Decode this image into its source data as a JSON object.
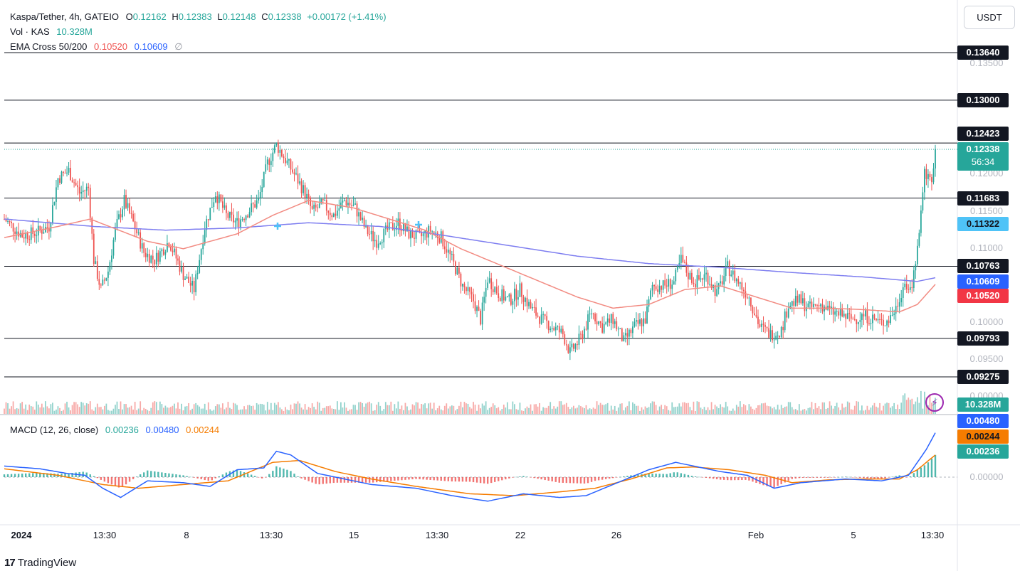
{
  "symbol": {
    "title": "Kaspa/Tether, 4h, GATEIO",
    "open_label": "O",
    "open": "0.12162",
    "high_label": "H",
    "high": "0.12383",
    "low_label": "L",
    "low": "0.12148",
    "close_label": "C",
    "close": "0.12338",
    "change": "+0.00172 (+1.41%)"
  },
  "volume_legend": {
    "label": "Vol · KAS",
    "value": "10.328M"
  },
  "ema_legend": {
    "label": "EMA Cross 50/200",
    "fast": "0.10520",
    "slow": "0.10609",
    "symbol": "∅"
  },
  "macd_legend": {
    "label": "MACD (12, 26, close)",
    "hist": "0.00236",
    "macd": "0.00480",
    "signal": "0.00244"
  },
  "currency_button": "USDT",
  "countdown": "56:34",
  "brand": "TradingView",
  "colors": {
    "up": "#26a69a",
    "down": "#ef5350",
    "ema_fast": "#f28b82",
    "ema_slow": "#7e7ef0",
    "macd": "#2962ff",
    "signal": "#f57c00",
    "accent_blue": "#2962ff",
    "purple": "#9c27b0"
  },
  "chart_data": {
    "type": "candlestick",
    "price_range": [
      0.0915,
      0.1385
    ],
    "horizontal_levels": [
      0.1364,
      0.13,
      0.12423,
      0.11683,
      0.10763,
      0.09793,
      0.09275
    ],
    "price_ticks": [
      "0.13500",
      "0.12000",
      "0.11500",
      "0.11000",
      "0.10000",
      "0.09500",
      "0.00000"
    ],
    "price_tags": [
      {
        "value": "0.13640",
        "kind": "level"
      },
      {
        "value": "0.13000",
        "kind": "level"
      },
      {
        "value": "0.12423",
        "kind": "level"
      },
      {
        "value": "0.12338",
        "kind": "last"
      },
      {
        "value": "0.11683",
        "kind": "level"
      },
      {
        "value": "0.11322",
        "kind": "cross"
      },
      {
        "value": "0.10763",
        "kind": "level"
      },
      {
        "value": "0.10609",
        "kind": "ema_slow"
      },
      {
        "value": "0.10520",
        "kind": "ema_fast"
      },
      {
        "value": "0.09793",
        "kind": "level"
      },
      {
        "value": "0.09275",
        "kind": "level"
      },
      {
        "value": "10.328M",
        "kind": "volume"
      }
    ],
    "macd_tags": [
      {
        "value": "0.00480",
        "kind": "macd"
      },
      {
        "value": "0.00244",
        "kind": "signal"
      },
      {
        "value": "0.00236",
        "kind": "hist"
      }
    ],
    "macd_zero_label": "0.00000",
    "x_labels": [
      "2024",
      "13:30",
      "8",
      "13:30",
      "15",
      "13:30",
      "22",
      "26",
      "Feb",
      "5",
      "13:30"
    ],
    "close_anchors": [
      [
        0,
        0.114
      ],
      [
        10,
        0.1118
      ],
      [
        18,
        0.1122
      ],
      [
        25,
        0.113
      ],
      [
        30,
        0.1195
      ],
      [
        36,
        0.1205
      ],
      [
        42,
        0.1175
      ],
      [
        47,
        0.1182
      ],
      [
        50,
        0.1085
      ],
      [
        54,
        0.1045
      ],
      [
        58,
        0.107
      ],
      [
        62,
        0.1125
      ],
      [
        67,
        0.1165
      ],
      [
        72,
        0.1135
      ],
      [
        78,
        0.1095
      ],
      [
        84,
        0.1085
      ],
      [
        92,
        0.111
      ],
      [
        100,
        0.1065
      ],
      [
        106,
        0.1045
      ],
      [
        112,
        0.113
      ],
      [
        118,
        0.1175
      ],
      [
        124,
        0.1145
      ],
      [
        130,
        0.1135
      ],
      [
        136,
        0.115
      ],
      [
        142,
        0.1165
      ],
      [
        147,
        0.1215
      ],
      [
        152,
        0.124
      ],
      [
        157,
        0.122
      ],
      [
        162,
        0.12
      ],
      [
        168,
        0.1175
      ],
      [
        172,
        0.115
      ],
      [
        178,
        0.116
      ],
      [
        184,
        0.1145
      ],
      [
        190,
        0.1165
      ],
      [
        196,
        0.1155
      ],
      [
        202,
        0.1125
      ],
      [
        208,
        0.111
      ],
      [
        214,
        0.1125
      ],
      [
        220,
        0.1135
      ],
      [
        226,
        0.112
      ],
      [
        232,
        0.1115
      ],
      [
        238,
        0.1125
      ],
      [
        244,
        0.1115
      ],
      [
        250,
        0.1085
      ],
      [
        256,
        0.105
      ],
      [
        262,
        0.103
      ],
      [
        266,
        0.1005
      ],
      [
        270,
        0.106
      ],
      [
        276,
        0.104
      ],
      [
        282,
        0.103
      ],
      [
        288,
        0.1045
      ],
      [
        294,
        0.102
      ],
      [
        300,
        0.1005
      ],
      [
        306,
        0.0995
      ],
      [
        312,
        0.0985
      ],
      [
        316,
        0.096
      ],
      [
        322,
        0.098
      ],
      [
        328,
        0.1015
      ],
      [
        334,
        0.0995
      ],
      [
        340,
        0.1005
      ],
      [
        346,
        0.0975
      ],
      [
        352,
        0.0995
      ],
      [
        358,
        0.1005
      ],
      [
        362,
        0.105
      ],
      [
        368,
        0.105
      ],
      [
        374,
        0.1055
      ],
      [
        378,
        0.1085
      ],
      [
        382,
        0.1065
      ],
      [
        386,
        0.1055
      ],
      [
        392,
        0.1065
      ],
      [
        398,
        0.104
      ],
      [
        404,
        0.1075
      ],
      [
        410,
        0.1055
      ],
      [
        416,
        0.1035
      ],
      [
        422,
        0.0995
      ],
      [
        428,
        0.0985
      ],
      [
        434,
        0.099
      ],
      [
        438,
        0.1025
      ],
      [
        444,
        0.103
      ],
      [
        450,
        0.102
      ],
      [
        456,
        0.1025
      ],
      [
        462,
        0.1015
      ],
      [
        468,
        0.101
      ],
      [
        474,
        0.1005
      ],
      [
        480,
        0.101
      ],
      [
        486,
        0.1005
      ],
      [
        490,
        0.1
      ],
      [
        494,
        0.1005
      ],
      [
        498,
        0.102
      ],
      [
        502,
        0.105
      ],
      [
        506,
        0.104
      ],
      [
        510,
        0.11
      ],
      [
        514,
        0.12
      ],
      [
        518,
        0.1195
      ],
      [
        520,
        0.1234
      ]
    ],
    "ema_fast_anchors": [
      [
        0,
        0.1115
      ],
      [
        30,
        0.113
      ],
      [
        48,
        0.114
      ],
      [
        80,
        0.111
      ],
      [
        100,
        0.11
      ],
      [
        130,
        0.112
      ],
      [
        150,
        0.1145
      ],
      [
        170,
        0.1165
      ],
      [
        195,
        0.1155
      ],
      [
        215,
        0.114
      ],
      [
        235,
        0.1125
      ],
      [
        255,
        0.11
      ],
      [
        280,
        0.1075
      ],
      [
        300,
        0.1055
      ],
      [
        320,
        0.1035
      ],
      [
        340,
        0.102
      ],
      [
        360,
        0.1025
      ],
      [
        380,
        0.1045
      ],
      [
        400,
        0.105
      ],
      [
        420,
        0.1035
      ],
      [
        440,
        0.102
      ],
      [
        460,
        0.102
      ],
      [
        480,
        0.1018
      ],
      [
        500,
        0.1015
      ],
      [
        510,
        0.1025
      ],
      [
        520,
        0.1052
      ]
    ],
    "ema_slow_anchors": [
      [
        0,
        0.114
      ],
      [
        50,
        0.113
      ],
      [
        90,
        0.1125
      ],
      [
        130,
        0.1128
      ],
      [
        170,
        0.1135
      ],
      [
        210,
        0.113
      ],
      [
        240,
        0.112
      ],
      [
        280,
        0.1105
      ],
      [
        320,
        0.109
      ],
      [
        360,
        0.108
      ],
      [
        400,
        0.1075
      ],
      [
        440,
        0.1068
      ],
      [
        480,
        0.1062
      ],
      [
        510,
        0.1056
      ],
      [
        520,
        0.1061
      ]
    ],
    "macd_anchors": [
      [
        0,
        0.0012
      ],
      [
        20,
        0.0009
      ],
      [
        35,
        0.0004
      ],
      [
        45,
        0.0002
      ],
      [
        55,
        -0.0012
      ],
      [
        65,
        -0.0022
      ],
      [
        80,
        -0.0004
      ],
      [
        100,
        -0.0006
      ],
      [
        115,
        -0.001
      ],
      [
        130,
        0.0008
      ],
      [
        145,
        0.001
      ],
      [
        152,
        0.0028
      ],
      [
        160,
        0.0024
      ],
      [
        175,
        0.0004
      ],
      [
        190,
        -0.0002
      ],
      [
        205,
        -0.0008
      ],
      [
        230,
        -0.0012
      ],
      [
        250,
        -0.002
      ],
      [
        270,
        -0.0026
      ],
      [
        290,
        -0.0018
      ],
      [
        310,
        -0.0022
      ],
      [
        325,
        -0.002
      ],
      [
        345,
        -0.0004
      ],
      [
        360,
        0.0008
      ],
      [
        375,
        0.0016
      ],
      [
        385,
        0.0012
      ],
      [
        400,
        0.0006
      ],
      [
        415,
        0.0002
      ],
      [
        430,
        -0.0012
      ],
      [
        445,
        -0.0006
      ],
      [
        470,
        -0.0002
      ],
      [
        490,
        -0.0004
      ],
      [
        505,
        0.0002
      ],
      [
        515,
        0.003
      ],
      [
        520,
        0.0048
      ]
    ],
    "signal_anchors": [
      [
        0,
        0.0009
      ],
      [
        30,
        0.0002
      ],
      [
        55,
        -0.0008
      ],
      [
        75,
        -0.0012
      ],
      [
        100,
        -0.0008
      ],
      [
        125,
        -0.0004
      ],
      [
        150,
        0.0016
      ],
      [
        165,
        0.0018
      ],
      [
        185,
        0.0006
      ],
      [
        205,
        -0.0002
      ],
      [
        230,
        -0.001
      ],
      [
        260,
        -0.0018
      ],
      [
        285,
        -0.002
      ],
      [
        310,
        -0.0016
      ],
      [
        330,
        -0.0012
      ],
      [
        350,
        -0.0002
      ],
      [
        370,
        0.001
      ],
      [
        385,
        0.0011
      ],
      [
        405,
        0.0008
      ],
      [
        425,
        0.0002
      ],
      [
        440,
        -0.0006
      ],
      [
        460,
        -0.0003
      ],
      [
        480,
        -0.0002
      ],
      [
        500,
        -0.0002
      ],
      [
        510,
        0.0008
      ],
      [
        520,
        0.0024
      ]
    ],
    "n_bars": 521
  }
}
